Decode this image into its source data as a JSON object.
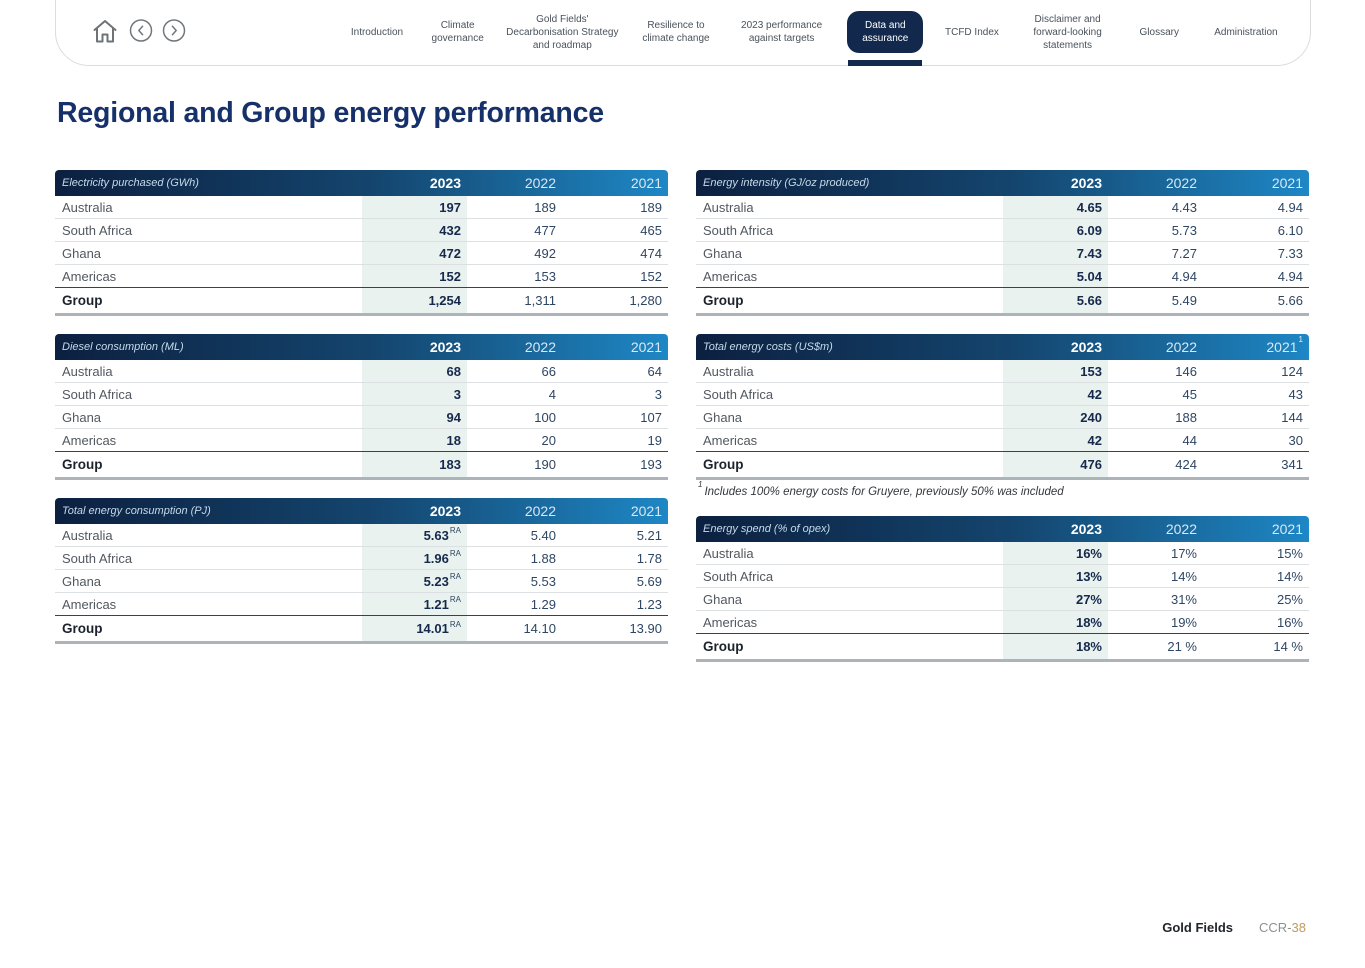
{
  "nav": {
    "icons": [
      "home-icon",
      "chevron-left-circle-icon",
      "chevron-right-circle-icon"
    ],
    "tabs": [
      {
        "label": "Introduction",
        "active": false
      },
      {
        "label": "Climate governance",
        "active": false
      },
      {
        "label": "Gold Fields' Decarbonisation Strategy and roadmap",
        "active": false
      },
      {
        "label": "Resilience to climate change",
        "active": false
      },
      {
        "label": "2023 performance against targets",
        "active": false
      },
      {
        "label": "Data and assurance",
        "active": true
      },
      {
        "label": "TCFD Index",
        "active": false
      },
      {
        "label": "Disclaimer and forward-looking statements",
        "active": false
      },
      {
        "label": "Glossary",
        "active": false
      },
      {
        "label": "Administration",
        "active": false
      }
    ]
  },
  "page": {
    "title": "Regional and Group energy performance"
  },
  "tables": [
    {
      "title": "Electricity purchased (GWh)",
      "years": [
        "2023",
        "2022",
        "2021"
      ],
      "year_sups": [
        "",
        "",
        ""
      ],
      "rows": [
        {
          "label": "Australia",
          "values": [
            "197",
            "189",
            "189"
          ],
          "value_sup": "",
          "is_total": false
        },
        {
          "label": "South Africa",
          "values": [
            "432",
            "477",
            "465"
          ],
          "value_sup": "",
          "is_total": false
        },
        {
          "label": "Ghana",
          "values": [
            "472",
            "492",
            "474"
          ],
          "value_sup": "",
          "is_total": false
        },
        {
          "label": "Americas",
          "values": [
            "152",
            "153",
            "152"
          ],
          "value_sup": "",
          "is_total": false
        },
        {
          "label": "Group",
          "values": [
            "1,254",
            "1,311",
            "1,280"
          ],
          "value_sup": "",
          "is_total": true
        }
      ]
    },
    {
      "title": "Energy intensity (GJ/oz produced)",
      "years": [
        "2023",
        "2022",
        "2021"
      ],
      "year_sups": [
        "",
        "",
        ""
      ],
      "rows": [
        {
          "label": "Australia",
          "values": [
            "4.65",
            "4.43",
            "4.94"
          ],
          "value_sup": "",
          "is_total": false
        },
        {
          "label": "South Africa",
          "values": [
            "6.09",
            "5.73",
            "6.10"
          ],
          "value_sup": "",
          "is_total": false
        },
        {
          "label": "Ghana",
          "values": [
            "7.43",
            "7.27",
            "7.33"
          ],
          "value_sup": "",
          "is_total": false
        },
        {
          "label": "Americas",
          "values": [
            "5.04",
            "4.94",
            "4.94"
          ],
          "value_sup": "",
          "is_total": false
        },
        {
          "label": "Group",
          "values": [
            "5.66",
            "5.49",
            "5.66"
          ],
          "value_sup": "",
          "is_total": true
        }
      ]
    },
    {
      "title": "Diesel consumption (ML)",
      "years": [
        "2023",
        "2022",
        "2021"
      ],
      "year_sups": [
        "",
        "",
        ""
      ],
      "rows": [
        {
          "label": "Australia",
          "values": [
            "68",
            "66",
            "64"
          ],
          "value_sup": "",
          "is_total": false
        },
        {
          "label": "South Africa",
          "values": [
            "3",
            "4",
            "3"
          ],
          "value_sup": "",
          "is_total": false
        },
        {
          "label": "Ghana",
          "values": [
            "94",
            "100",
            "107"
          ],
          "value_sup": "",
          "is_total": false
        },
        {
          "label": "Americas",
          "values": [
            "18",
            "20",
            "19"
          ],
          "value_sup": "",
          "is_total": false
        },
        {
          "label": "Group",
          "values": [
            "183",
            "190",
            "193"
          ],
          "value_sup": "",
          "is_total": true
        }
      ]
    },
    {
      "title": "Total energy costs (US$m)",
      "years": [
        "2023",
        "2022",
        "2021"
      ],
      "year_sups": [
        "",
        "",
        "1"
      ],
      "rows": [
        {
          "label": "Australia",
          "values": [
            "153",
            "146",
            "124"
          ],
          "value_sup": "",
          "is_total": false
        },
        {
          "label": "South Africa",
          "values": [
            "42",
            "45",
            "43"
          ],
          "value_sup": "",
          "is_total": false
        },
        {
          "label": "Ghana",
          "values": [
            "240",
            "188",
            "144"
          ],
          "value_sup": "",
          "is_total": false
        },
        {
          "label": "Americas",
          "values": [
            "42",
            "44",
            "30"
          ],
          "value_sup": "",
          "is_total": false
        },
        {
          "label": "Group",
          "values": [
            "476",
            "424",
            "341"
          ],
          "value_sup": "",
          "is_total": true
        }
      ],
      "footnote": {
        "marker": "1",
        "text": "Includes 100% energy costs for Gruyere, previously 50% was included"
      }
    },
    {
      "title": "Total energy consumption (PJ)",
      "years": [
        "2023",
        "2022",
        "2021"
      ],
      "year_sups": [
        "",
        "",
        ""
      ],
      "rows": [
        {
          "label": "Australia",
          "values": [
            "5.63",
            "5.40",
            "5.21"
          ],
          "value_sup": "RA",
          "is_total": false
        },
        {
          "label": "South Africa",
          "values": [
            "1.96",
            "1.88",
            "1.78"
          ],
          "value_sup": "RA",
          "is_total": false
        },
        {
          "label": "Ghana",
          "values": [
            "5.23",
            "5.53",
            "5.69"
          ],
          "value_sup": "RA",
          "is_total": false
        },
        {
          "label": "Americas",
          "values": [
            "1.21",
            "1.29",
            "1.23"
          ],
          "value_sup": "RA",
          "is_total": false
        },
        {
          "label": "Group",
          "values": [
            "14.01",
            "14.10",
            "13.90"
          ],
          "value_sup": "RA",
          "is_total": true
        }
      ]
    },
    {
      "title": "Energy spend (% of opex)",
      "years": [
        "2023",
        "2022",
        "2021"
      ],
      "year_sups": [
        "",
        "",
        ""
      ],
      "rows": [
        {
          "label": "Australia",
          "values": [
            "16%",
            "17%",
            "15%"
          ],
          "value_sup": "",
          "is_total": false
        },
        {
          "label": "South Africa",
          "values": [
            "13%",
            "14%",
            "14%"
          ],
          "value_sup": "",
          "is_total": false
        },
        {
          "label": "Ghana",
          "values": [
            "27%",
            "31%",
            "25%"
          ],
          "value_sup": "",
          "is_total": false
        },
        {
          "label": "Americas",
          "values": [
            "18%",
            "19%",
            "16%"
          ],
          "value_sup": "",
          "is_total": false
        },
        {
          "label": "Group",
          "values": [
            "18%",
            "21 %",
            "14 %"
          ],
          "value_sup": "",
          "is_total": true
        }
      ]
    }
  ],
  "footer": {
    "brand": "Gold Fields",
    "page_prefix": "CCR-",
    "page_number": "38"
  },
  "colors": {
    "navy": "#12294D",
    "header_gradient_start": "#0C2040",
    "header_gradient_end": "#1E87C5",
    "highlight_2023_column": "#E9F2EF",
    "title_navy": "#16306A",
    "page_number_gold": "#C19B5E"
  }
}
